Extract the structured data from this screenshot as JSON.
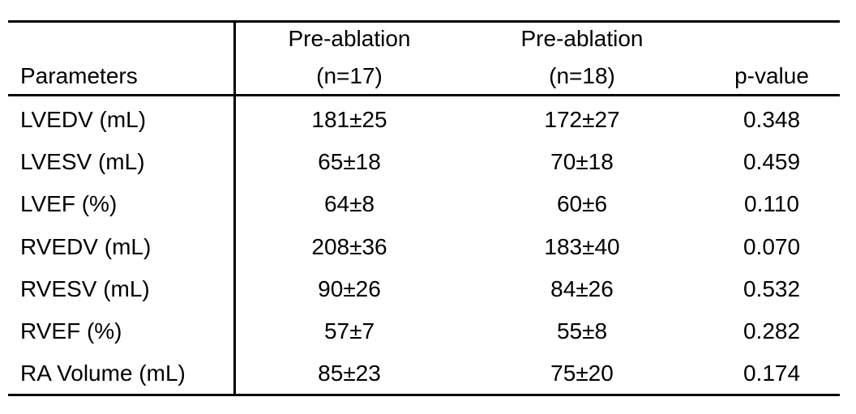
{
  "table": {
    "header": [
      "Parameters",
      [
        "Pre-ablation",
        "(n=17)"
      ],
      [
        "Pre-ablation",
        "(n=18)"
      ],
      "p-value"
    ],
    "rows": [
      [
        "LVEDV (mL)",
        "181±25",
        "172±27",
        "0.348"
      ],
      [
        "LVESV (mL)",
        "65±18",
        "70±18",
        "0.459"
      ],
      [
        "LVEF (%)",
        "64±8",
        "60±6",
        "0.110"
      ],
      [
        "RVEDV (mL)",
        "208±36",
        "183±40",
        "0.070"
      ],
      [
        "RVESV (mL)",
        "90±26",
        "84±26",
        "0.532"
      ],
      [
        "RVEF (%)",
        "57±7",
        "55±8",
        "0.282"
      ],
      [
        "RA Volume (mL)",
        "85±23",
        "75±20",
        "0.174"
      ]
    ]
  }
}
